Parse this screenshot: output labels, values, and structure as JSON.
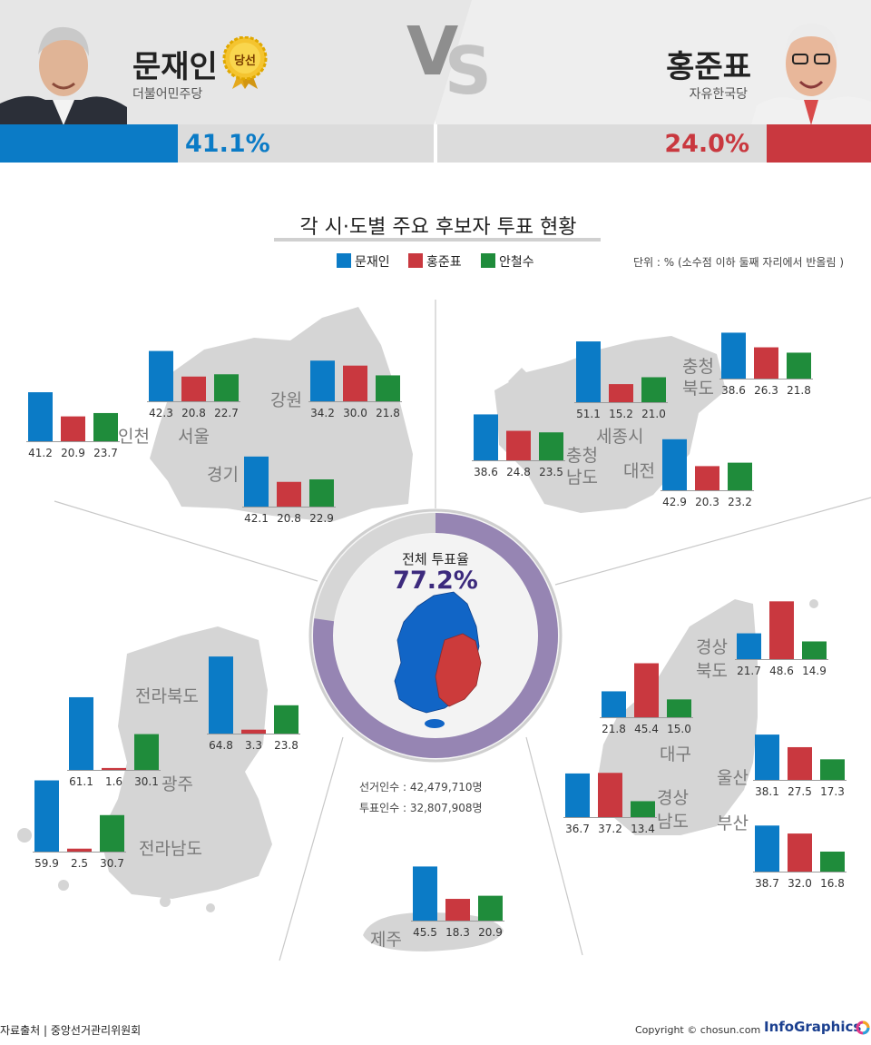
{
  "colors": {
    "moon": "#0b7bc6",
    "hong": "#c9383f",
    "ahn": "#1f8c3b",
    "ring": "#9685b3",
    "ring_bg": "#d6d6d6",
    "turnout": "#3c2a7d"
  },
  "header": {
    "left": {
      "name": "문재인",
      "party": "더불어민주당",
      "badge": "당선",
      "percent": "41.1%",
      "percent_value": 41.1
    },
    "right": {
      "name": "홍준표",
      "party": "자유한국당",
      "percent": "24.0%",
      "percent_value": 24.0
    },
    "vs": "VS"
  },
  "title": "각 시·도별 주요 후보자 투표 현황",
  "legend": [
    "문재인",
    "홍준표",
    "안철수"
  ],
  "unit_note": "단위 : % (소수점 이하 둘째 자리에서 반올림 )",
  "center": {
    "label": "전체 투표율",
    "turnout": "77.2%",
    "turnout_value": 77.2,
    "electors": "선거인수 : 42,479,710명",
    "voters": "투표인수 : 32,807,908명"
  },
  "footer": {
    "source": "자료출처 | 중앙선거관리위원회",
    "copyright": "Copyright © chosun.com",
    "brand": "InfoGraphics"
  },
  "chart_data": {
    "type": "bar",
    "title": "각 시·도별 주요 후보자 투표 현황",
    "series_names": [
      "문재인",
      "홍준표",
      "안철수"
    ],
    "regions": [
      {
        "name": "인천",
        "values": [
          41.2,
          20.9,
          23.7
        ]
      },
      {
        "name": "서울",
        "values": [
          42.3,
          20.8,
          22.7
        ]
      },
      {
        "name": "강원",
        "values": [
          34.2,
          30.0,
          21.8
        ]
      },
      {
        "name": "경기",
        "values": [
          42.1,
          20.8,
          22.9
        ]
      },
      {
        "name": "세종시",
        "values": [
          51.1,
          15.2,
          21.0
        ]
      },
      {
        "name": "충청북도",
        "values": [
          38.6,
          26.3,
          21.8
        ]
      },
      {
        "name": "충청남도",
        "values": [
          38.6,
          24.8,
          23.5
        ]
      },
      {
        "name": "대전",
        "values": [
          42.9,
          20.3,
          23.2
        ]
      },
      {
        "name": "전라북도",
        "values": [
          64.8,
          3.3,
          23.8
        ]
      },
      {
        "name": "광주",
        "values": [
          61.1,
          1.6,
          30.1
        ]
      },
      {
        "name": "전라남도",
        "values": [
          59.9,
          2.5,
          30.7
        ]
      },
      {
        "name": "경상북도",
        "values": [
          21.7,
          48.6,
          14.9
        ]
      },
      {
        "name": "대구",
        "values": [
          21.8,
          45.4,
          15.0
        ]
      },
      {
        "name": "울산",
        "values": [
          38.1,
          27.5,
          17.3
        ]
      },
      {
        "name": "경상남도",
        "values": [
          36.7,
          37.2,
          13.4
        ]
      },
      {
        "name": "부산",
        "values": [
          38.7,
          32.0,
          16.8
        ]
      },
      {
        "name": "제주",
        "values": [
          45.5,
          18.3,
          20.9
        ]
      }
    ]
  }
}
